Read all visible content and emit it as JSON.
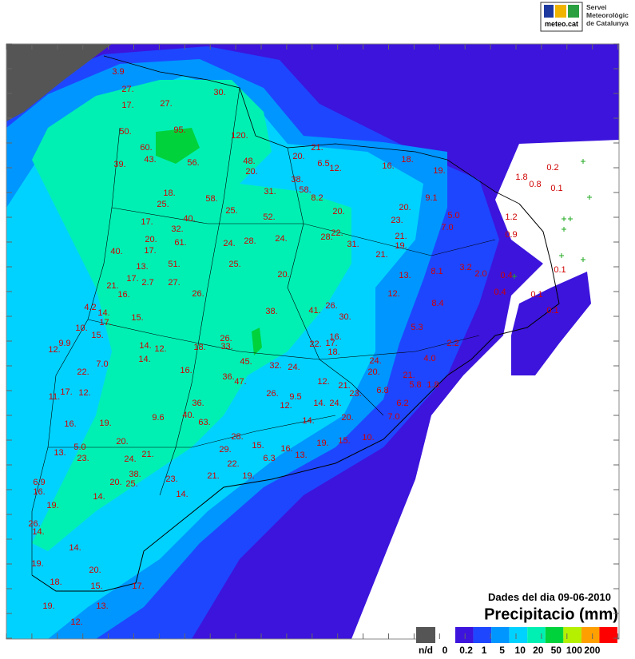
{
  "header": {
    "logo": "meteo.cat",
    "agency": [
      "Servei",
      "Meteorològic",
      "de Catalunya"
    ]
  },
  "map": {
    "date": "Dades del dia 09-06-2010",
    "title": "Precipitacio (mm)",
    "stations": [
      "3.9",
      "27.",
      "17.",
      "27.",
      "30.",
      "50.",
      "95.",
      "60.",
      "43.",
      "120.",
      "39.",
      "56.",
      "48.",
      "20.",
      "20.",
      "21.",
      "6.5",
      "12.",
      "16.",
      "18.",
      "19.",
      "0.2",
      "1.8",
      "0.8",
      "0.1",
      "18.",
      "58.",
      "31.",
      "38.",
      "58.",
      "8.2",
      "25.",
      "25.",
      "20.",
      "20.",
      "9.1",
      "5.0",
      "17.",
      "40.",
      "52.",
      "23.",
      "1.2",
      "32.",
      "7.0",
      "0.9",
      "20.",
      "61.",
      "24.",
      "28.",
      "24.",
      "28.",
      "22.",
      "21.",
      "40.",
      "17.",
      "31.",
      "19.",
      "21.",
      "13.",
      "51.",
      "25.",
      "17.",
      "2.7",
      "27.",
      "20.",
      "13.",
      "8.1",
      "3.2",
      "2.0",
      "0.4",
      "0.1",
      "21.",
      "16.",
      "26.",
      "41.",
      "26.",
      "12.",
      "0.4",
      "0.1",
      "4.2",
      "14.",
      "17.",
      "15.",
      "38.",
      "30.",
      "8.4",
      "0.1",
      "10.",
      "15.",
      "5.3",
      "12.",
      "9.9",
      "14.",
      "12.",
      "18.",
      "26.",
      "33.",
      "22.",
      "17.",
      "16.",
      "18.",
      "2.2",
      "14.",
      "7.0",
      "16.",
      "45.",
      "32.",
      "24.",
      "24.",
      "4.0",
      "22.",
      "36.",
      "47.",
      "12.",
      "20.",
      "21.",
      "12.",
      "17.",
      "11.",
      "26.",
      "21.",
      "23.",
      "6.8",
      "5.8",
      "1.8",
      "36.",
      "9.5",
      "12.",
      "14.",
      "24.",
      "6.2",
      "9.6",
      "40.",
      "63.",
      "16.",
      "19.",
      "14.",
      "20.",
      "7.0",
      "28.",
      "10.",
      "5.0",
      "20.",
      "13.",
      "23.",
      "24.",
      "21.",
      "29.",
      "22.",
      "15.",
      "6.3",
      "16.",
      "13.",
      "19.",
      "15.",
      "38.",
      "23.",
      "21.",
      "19.",
      "20.",
      "25.",
      "6.9",
      "16.",
      "19.",
      "14.",
      "14.",
      "26.",
      "14.",
      "14.",
      "19.",
      "20.",
      "18.",
      "15.",
      "17.",
      "19.",
      "13.",
      "12."
    ]
  },
  "legend": {
    "nodata": {
      "label": "n/d",
      "color": "#555555"
    },
    "zero": {
      "label": "0",
      "color": "#ffffff"
    },
    "colors": [
      "#3c14dc",
      "#1e46ff",
      "#0096ff",
      "#00d2ff",
      "#00f0b4",
      "#00d23c",
      "#b4f000",
      "#ffa000",
      "#ff0000"
    ],
    "thresholds": [
      "0.2",
      "1",
      "5",
      "10",
      "20",
      "50",
      "100",
      "200"
    ]
  }
}
